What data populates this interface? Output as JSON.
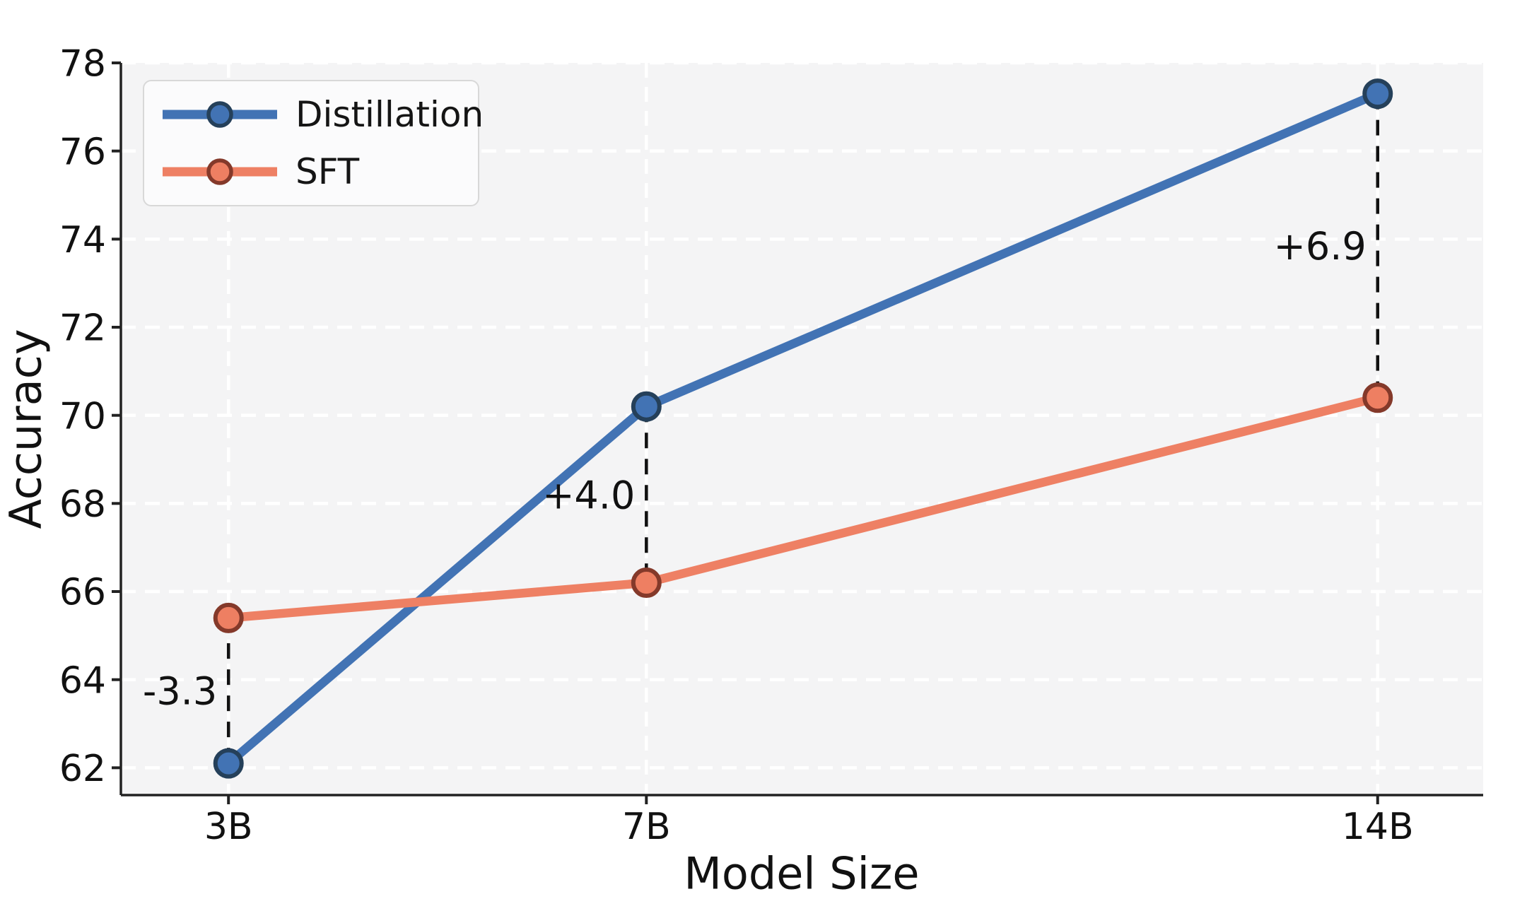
{
  "chart_data": {
    "type": "line",
    "xlabel": "Model Size",
    "ylabel": "Accuracy",
    "x": [
      3,
      7,
      14
    ],
    "x_tick_labels": [
      "3B",
      "7B",
      "14B"
    ],
    "y_ticks": [
      62,
      64,
      66,
      68,
      70,
      72,
      74,
      76,
      78
    ],
    "xlim": [
      1.97,
      15.01
    ],
    "ylim": [
      61.38,
      78.0
    ],
    "grid": true,
    "grid_style": "dashed-white",
    "legend_position": "upper-left",
    "series": [
      {
        "name": "Distillation",
        "values": [
          62.1,
          70.2,
          77.3
        ],
        "line_color": "#4273b4",
        "marker_fill": "#4273b4",
        "marker_edge": "#25405a"
      },
      {
        "name": "SFT",
        "values": [
          65.4,
          66.2,
          70.4
        ],
        "line_color": "#ee8064",
        "marker_fill": "#ee7f62",
        "marker_edge": "#84392a"
      }
    ],
    "annotations": [
      {
        "x": 3,
        "label": "-3.3"
      },
      {
        "x": 7,
        "label": "+4.0"
      },
      {
        "x": 14,
        "label": "+6.9"
      }
    ]
  },
  "colors": {
    "figure_background": "#ffffff",
    "plot_background": "#f4f4f5",
    "gridline": "#ffffff",
    "spine": "#222222",
    "tick_mark": "#222222",
    "tick_label": "#111111",
    "annotation_text": "#111111",
    "connector": "#111111",
    "legend_background": "#fbfbfc",
    "legend_border": "#d8d8d8"
  }
}
